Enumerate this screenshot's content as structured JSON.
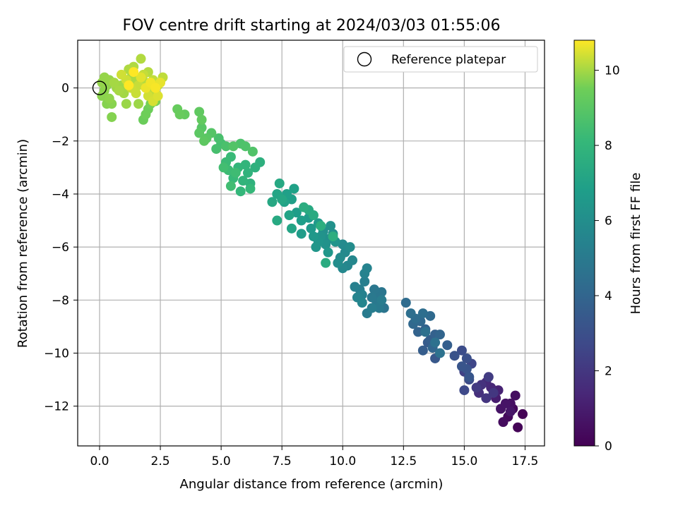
{
  "chart_data": {
    "type": "scatter",
    "title": "FOV centre drift starting at 2024/03/03 01:55:06",
    "xlabel": "Angular distance from reference (arcmin)",
    "ylabel": "Rotation from reference (arcmin)",
    "xlim": [
      -0.9,
      18.3
    ],
    "ylim": [
      -13.5,
      1.8
    ],
    "xticks": [
      0.0,
      2.5,
      5.0,
      7.5,
      10.0,
      12.5,
      15.0,
      17.5
    ],
    "xtick_labels": [
      "0.0",
      "2.5",
      "5.0",
      "7.5",
      "10.0",
      "12.5",
      "15.0",
      "17.5"
    ],
    "yticks": [
      0,
      -2,
      -4,
      -6,
      -8,
      -10,
      -12
    ],
    "ytick_labels": [
      "0",
      "−2",
      "−4",
      "−6",
      "−8",
      "−10",
      "−12"
    ],
    "grid": true,
    "legend": {
      "placement": "top-right",
      "label": "Reference platepar"
    },
    "reference_point": {
      "x": 0.0,
      "y": 0.0
    },
    "colorbar": {
      "label": "Hours from first FF file",
      "range": [
        0,
        10.8
      ],
      "ticks": [
        0,
        2,
        4,
        6,
        8,
        10
      ],
      "tick_labels": [
        "0",
        "2",
        "4",
        "6",
        "8",
        "10"
      ],
      "colormap": "viridis"
    },
    "points": [
      [
        17.4,
        -12.3,
        0.05
      ],
      [
        17.2,
        -12.8,
        0.1
      ],
      [
        17.0,
        -12.1,
        0.2
      ],
      [
        16.8,
        -12.4,
        0.3
      ],
      [
        16.6,
        -12.6,
        0.4
      ],
      [
        17.1,
        -11.6,
        0.45
      ],
      [
        16.9,
        -11.9,
        0.55
      ],
      [
        16.5,
        -12.1,
        0.65
      ],
      [
        16.7,
        -11.9,
        0.7
      ],
      [
        16.9,
        -12.2,
        0.75
      ],
      [
        16.3,
        -11.7,
        1.0
      ],
      [
        16.4,
        -11.4,
        1.2
      ],
      [
        16.1,
        -11.3,
        1.4
      ],
      [
        15.9,
        -11.1,
        1.5
      ],
      [
        15.6,
        -11.5,
        1.7
      ],
      [
        15.7,
        -11.2,
        1.8
      ],
      [
        15.9,
        -11.7,
        1.9
      ],
      [
        16.2,
        -11.5,
        2.0
      ],
      [
        15.5,
        -11.3,
        2.1
      ],
      [
        16.0,
        -10.9,
        2.2
      ],
      [
        15.0,
        -10.7,
        2.4
      ],
      [
        15.3,
        -10.4,
        2.6
      ],
      [
        15.0,
        -11.4,
        2.7
      ],
      [
        15.2,
        -11.0,
        2.8
      ],
      [
        14.9,
        -9.9,
        2.9
      ],
      [
        15.1,
        -10.2,
        3.0
      ],
      [
        14.6,
        -10.1,
        3.1
      ],
      [
        15.1,
        -10.6,
        3.2
      ],
      [
        14.9,
        -10.5,
        3.25
      ],
      [
        15.2,
        -10.9,
        3.3
      ],
      [
        13.8,
        -10.2,
        3.4
      ],
      [
        13.5,
        -9.6,
        3.5
      ],
      [
        13.3,
        -9.9,
        3.6
      ],
      [
        13.6,
        -9.5,
        3.65
      ],
      [
        14.3,
        -9.7,
        3.7
      ],
      [
        13.8,
        -9.3,
        3.8
      ],
      [
        13.4,
        -9.1,
        3.85
      ],
      [
        13.1,
        -9.2,
        3.9
      ],
      [
        14.0,
        -9.3,
        3.95
      ],
      [
        13.7,
        -9.8,
        4.0
      ],
      [
        13.2,
        -8.8,
        4.1
      ],
      [
        12.9,
        -8.9,
        4.15
      ],
      [
        13.6,
        -8.6,
        4.2
      ],
      [
        12.6,
        -8.1,
        4.3
      ],
      [
        13.0,
        -8.7,
        4.35
      ],
      [
        13.3,
        -8.5,
        4.4
      ],
      [
        12.8,
        -8.5,
        4.45
      ],
      [
        13.4,
        -9.2,
        4.5
      ],
      [
        13.8,
        -9.6,
        4.55
      ],
      [
        14.0,
        -10.0,
        4.6
      ],
      [
        11.7,
        -8.3,
        4.7
      ],
      [
        11.5,
        -7.9,
        4.75
      ],
      [
        11.6,
        -7.7,
        4.8
      ],
      [
        11.3,
        -7.6,
        4.85
      ],
      [
        11.4,
        -8.1,
        4.9
      ],
      [
        11.2,
        -7.9,
        4.95
      ],
      [
        11.5,
        -8.3,
        5.0
      ],
      [
        11.0,
        -8.5,
        5.05
      ],
      [
        11.6,
        -8.0,
        5.1
      ],
      [
        11.2,
        -8.3,
        5.15
      ],
      [
        10.7,
        -7.6,
        5.2
      ],
      [
        10.9,
        -7.3,
        5.25
      ],
      [
        10.5,
        -7.5,
        5.3
      ],
      [
        10.8,
        -7.8,
        5.35
      ],
      [
        10.9,
        -7.0,
        5.4
      ],
      [
        11.0,
        -6.8,
        5.45
      ],
      [
        10.6,
        -7.9,
        5.5
      ],
      [
        10.8,
        -8.1,
        5.55
      ],
      [
        10.2,
        -6.7,
        5.6
      ],
      [
        10.4,
        -6.5,
        5.65
      ],
      [
        10.0,
        -6.8,
        5.7
      ],
      [
        10.1,
        -6.2,
        5.75
      ],
      [
        10.0,
        -5.9,
        5.8
      ],
      [
        9.9,
        -6.4,
        5.85
      ],
      [
        10.3,
        -6.0,
        5.9
      ],
      [
        9.8,
        -6.6,
        5.95
      ],
      [
        9.4,
        -5.7,
        6.0
      ],
      [
        9.6,
        -5.5,
        6.05
      ],
      [
        9.2,
        -5.4,
        6.1
      ],
      [
        9.5,
        -5.2,
        6.15
      ],
      [
        9.3,
        -5.9,
        6.2
      ],
      [
        9.1,
        -5.6,
        6.25
      ],
      [
        9.7,
        -5.8,
        6.3
      ],
      [
        9.0,
        -5.8,
        6.35
      ],
      [
        8.9,
        -6.0,
        6.4
      ],
      [
        9.4,
        -6.2,
        6.45
      ],
      [
        8.8,
        -5.6,
        6.5
      ],
      [
        8.7,
        -5.3,
        6.55
      ],
      [
        9.0,
        -5.1,
        6.6
      ],
      [
        8.6,
        -4.9,
        6.65
      ],
      [
        8.3,
        -5.5,
        6.7
      ],
      [
        8.1,
        -4.7,
        6.75
      ],
      [
        8.3,
        -5.0,
        6.8
      ],
      [
        7.9,
        -4.2,
        6.85
      ],
      [
        7.7,
        -4.0,
        6.9
      ],
      [
        8.0,
        -3.8,
        6.95
      ],
      [
        7.6,
        -4.3,
        7.0
      ],
      [
        7.8,
        -4.8,
        7.05
      ],
      [
        7.9,
        -5.3,
        7.1
      ],
      [
        7.3,
        -4.0,
        7.15
      ],
      [
        7.5,
        -4.2,
        7.2
      ],
      [
        7.1,
        -4.3,
        7.25
      ],
      [
        7.4,
        -3.6,
        7.3
      ],
      [
        7.3,
        -5.0,
        7.35
      ],
      [
        8.6,
        -4.6,
        7.4
      ],
      [
        8.8,
        -4.8,
        7.45
      ],
      [
        9.3,
        -6.6,
        7.5
      ],
      [
        8.4,
        -4.5,
        7.55
      ],
      [
        9.6,
        -5.6,
        7.6
      ],
      [
        9.1,
        -5.2,
        7.65
      ],
      [
        6.6,
        -2.8,
        7.7
      ],
      [
        6.4,
        -3.0,
        7.75
      ],
      [
        6.2,
        -3.6,
        7.8
      ],
      [
        6.1,
        -3.2,
        7.85
      ],
      [
        5.9,
        -3.5,
        7.9
      ],
      [
        6.0,
        -2.9,
        7.95
      ],
      [
        5.7,
        -3.0,
        8.0
      ],
      [
        5.8,
        -3.9,
        8.05
      ],
      [
        6.2,
        -3.8,
        8.1
      ],
      [
        5.5,
        -3.4,
        8.15
      ],
      [
        5.4,
        -2.6,
        8.2
      ],
      [
        5.2,
        -2.8,
        8.25
      ],
      [
        5.3,
        -3.1,
        8.3
      ],
      [
        5.6,
        -3.2,
        8.35
      ],
      [
        5.4,
        -3.7,
        8.4
      ],
      [
        5.1,
        -3.0,
        8.45
      ],
      [
        5.0,
        -2.1,
        8.5
      ],
      [
        4.8,
        -2.3,
        8.55
      ],
      [
        4.9,
        -1.9,
        8.6
      ],
      [
        5.2,
        -2.2,
        8.65
      ],
      [
        5.8,
        -2.1,
        8.7
      ],
      [
        6.0,
        -2.2,
        8.75
      ],
      [
        6.3,
        -2.4,
        8.8
      ],
      [
        5.5,
        -2.2,
        8.85
      ],
      [
        4.6,
        -1.7,
        8.9
      ],
      [
        4.2,
        -1.5,
        8.95
      ],
      [
        4.4,
        -1.9,
        9.0
      ],
      [
        4.1,
        -1.7,
        9.05
      ],
      [
        4.3,
        -2.0,
        9.1
      ],
      [
        4.1,
        -0.9,
        9.15
      ],
      [
        4.2,
        -1.2,
        9.2
      ],
      [
        3.5,
        -1.0,
        9.25
      ],
      [
        3.2,
        -0.8,
        9.3
      ],
      [
        3.3,
        -1.0,
        9.35
      ],
      [
        1.8,
        -1.2,
        9.4
      ],
      [
        2.0,
        -0.8,
        9.45
      ],
      [
        1.9,
        -1.0,
        9.5
      ],
      [
        2.1,
        -0.6,
        9.55
      ],
      [
        2.3,
        -0.5,
        9.6
      ],
      [
        2.2,
        -0.3,
        9.65
      ],
      [
        0.5,
        -1.1,
        9.7
      ],
      [
        0.3,
        -0.6,
        9.72
      ],
      [
        0.5,
        -0.6,
        9.74
      ],
      [
        0.1,
        -0.3,
        9.76
      ],
      [
        0.2,
        -0.1,
        9.78
      ],
      [
        0.4,
        -0.4,
        9.8
      ],
      [
        0.3,
        0.1,
        9.82
      ],
      [
        0.1,
        0.2,
        9.84
      ],
      [
        0.2,
        0.4,
        9.86
      ],
      [
        0.4,
        0.3,
        9.88
      ],
      [
        1.1,
        -0.6,
        9.9
      ],
      [
        1.6,
        -0.6,
        9.92
      ],
      [
        0.7,
        0.0,
        9.94
      ],
      [
        0.9,
        0.1,
        9.96
      ],
      [
        1.0,
        -0.2,
        9.98
      ],
      [
        0.6,
        0.2,
        10.0
      ],
      [
        0.8,
        -0.1,
        10.02
      ],
      [
        1.3,
        0.4,
        10.04
      ],
      [
        1.5,
        0.3,
        10.06
      ],
      [
        1.2,
        0.7,
        10.08
      ],
      [
        1.4,
        0.8,
        10.1
      ],
      [
        1.7,
        1.1,
        10.12
      ],
      [
        2.0,
        0.6,
        10.14
      ],
      [
        1.9,
        0.2,
        10.16
      ],
      [
        2.1,
        0.0,
        10.18
      ],
      [
        2.3,
        -0.2,
        10.2
      ],
      [
        2.4,
        0.1,
        10.22
      ],
      [
        2.6,
        0.4,
        10.24
      ],
      [
        2.2,
        0.3,
        10.26
      ],
      [
        1.8,
        0.5,
        10.28
      ],
      [
        1.6,
        0.1,
        10.3
      ],
      [
        1.5,
        -0.2,
        10.32
      ],
      [
        1.3,
        0.0,
        10.34
      ],
      [
        1.1,
        0.3,
        10.36
      ],
      [
        0.9,
        0.5,
        10.38
      ],
      [
        2.0,
        -0.3,
        10.4
      ],
      [
        2.2,
        -0.5,
        10.45
      ],
      [
        2.4,
        -0.3,
        10.5
      ],
      [
        1.7,
        0.4,
        10.55
      ],
      [
        2.5,
        0.2,
        10.6
      ],
      [
        1.9,
        0.0,
        10.65
      ],
      [
        2.1,
        0.2,
        10.7
      ],
      [
        2.3,
        0.0,
        10.75
      ],
      [
        1.4,
        0.6,
        10.8
      ],
      [
        1.2,
        0.1,
        10.8
      ]
    ]
  }
}
